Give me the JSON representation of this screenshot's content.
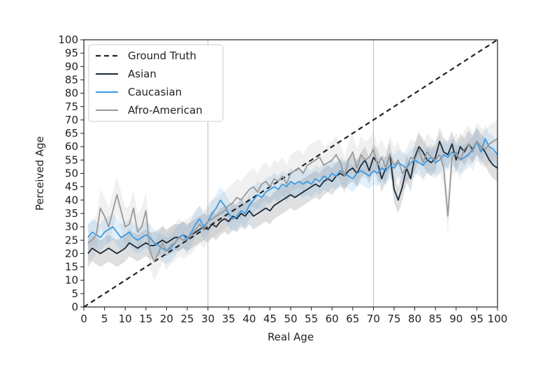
{
  "chart_data": {
    "type": "line",
    "title": "",
    "xlabel": "Real Age",
    "ylabel": "Perceived Age",
    "xlim": [
      0,
      100
    ],
    "ylim": [
      0,
      100
    ],
    "xticks": [
      0,
      5,
      10,
      15,
      20,
      25,
      30,
      35,
      40,
      45,
      50,
      55,
      60,
      65,
      70,
      75,
      80,
      85,
      90,
      95,
      100
    ],
    "yticks": [
      0,
      5,
      10,
      15,
      20,
      25,
      30,
      35,
      40,
      45,
      50,
      55,
      60,
      65,
      70,
      75,
      80,
      85,
      90,
      95,
      100
    ],
    "grid": false,
    "vlines": [
      30,
      70
    ],
    "legend_position": "top-left",
    "x": [
      1,
      2,
      3,
      4,
      5,
      6,
      7,
      8,
      9,
      10,
      11,
      12,
      13,
      14,
      15,
      16,
      17,
      18,
      19,
      20,
      21,
      22,
      23,
      24,
      25,
      26,
      27,
      28,
      29,
      30,
      31,
      32,
      33,
      34,
      35,
      36,
      37,
      38,
      39,
      40,
      41,
      42,
      43,
      44,
      45,
      46,
      47,
      48,
      49,
      50,
      51,
      52,
      53,
      54,
      55,
      56,
      57,
      58,
      59,
      60,
      61,
      62,
      63,
      64,
      65,
      66,
      67,
      68,
      69,
      70,
      71,
      72,
      73,
      74,
      75,
      76,
      77,
      78,
      79,
      80,
      81,
      82,
      83,
      84,
      85,
      86,
      87,
      88,
      89,
      90,
      91,
      92,
      93,
      94,
      95,
      96,
      97,
      98,
      99,
      100
    ],
    "series": [
      {
        "name": "Ground Truth",
        "color": "#222222",
        "dashed": true,
        "x": [
          0,
          100
        ],
        "values": [
          0,
          100
        ]
      },
      {
        "name": "Asian",
        "color": "#1c2833",
        "values": [
          20,
          22,
          21,
          20,
          21,
          22,
          21,
          20,
          21,
          22,
          24,
          23,
          22,
          23,
          24,
          23,
          23,
          24,
          25,
          24,
          25,
          26,
          26,
          27,
          26,
          27,
          28,
          29,
          30,
          29,
          31,
          30,
          32,
          33,
          32,
          34,
          33,
          35,
          34,
          36,
          34,
          35,
          36,
          37,
          36,
          38,
          39,
          40,
          41,
          42,
          41,
          42,
          43,
          44,
          45,
          46,
          45,
          47,
          48,
          47,
          49,
          50,
          49,
          51,
          52,
          50,
          53,
          55,
          51,
          56,
          54,
          48,
          52,
          57,
          44,
          40,
          45,
          52,
          48,
          56,
          60,
          58,
          55,
          54,
          56,
          62,
          58,
          57,
          61,
          55,
          60,
          58,
          61,
          59,
          62,
          60,
          58,
          55,
          53,
          52
        ],
        "band": 5
      },
      {
        "name": "Caucasian",
        "color": "#3b9ae1",
        "values": [
          26,
          28,
          27,
          26,
          28,
          29,
          30,
          28,
          26,
          27,
          28,
          26,
          25,
          26,
          27,
          26,
          24,
          23,
          22,
          21,
          22,
          24,
          26,
          27,
          25,
          28,
          31,
          33,
          30,
          32,
          35,
          37,
          40,
          38,
          35,
          33,
          34,
          36,
          35,
          38,
          40,
          42,
          41,
          43,
          44,
          45,
          44,
          46,
          45,
          47,
          46,
          47,
          46,
          47,
          46,
          48,
          47,
          49,
          48,
          50,
          49,
          51,
          50,
          49,
          48,
          50,
          51,
          50,
          49,
          51,
          50,
          52,
          51,
          53,
          52,
          54,
          53,
          52,
          54,
          55,
          54,
          53,
          55,
          56,
          54,
          55,
          57,
          56,
          58,
          57,
          55,
          56,
          57,
          59,
          62,
          58,
          63,
          60,
          59,
          57
        ],
        "band": 5
      },
      {
        "name": "Afro-American",
        "color": "#999999",
        "values": [
          24,
          25,
          27,
          37,
          34,
          30,
          36,
          42,
          36,
          30,
          31,
          37,
          28,
          30,
          36,
          21,
          17,
          20,
          24,
          21,
          23,
          24,
          26,
          25,
          26,
          27,
          29,
          31,
          29,
          32,
          33,
          34,
          35,
          36,
          38,
          39,
          41,
          40,
          42,
          44,
          45,
          43,
          46,
          47,
          45,
          48,
          47,
          49,
          46,
          50,
          51,
          52,
          50,
          53,
          54,
          55,
          56,
          53,
          54,
          55,
          57,
          54,
          49,
          55,
          58,
          52,
          57,
          55,
          56,
          59,
          53,
          56,
          52,
          57,
          53,
          55,
          50,
          52,
          56,
          55,
          59,
          54,
          58,
          56,
          55,
          57,
          52,
          34,
          56,
          58,
          55,
          59,
          61,
          58,
          62,
          60,
          59,
          61,
          62,
          63
        ],
        "band": 7
      }
    ]
  }
}
